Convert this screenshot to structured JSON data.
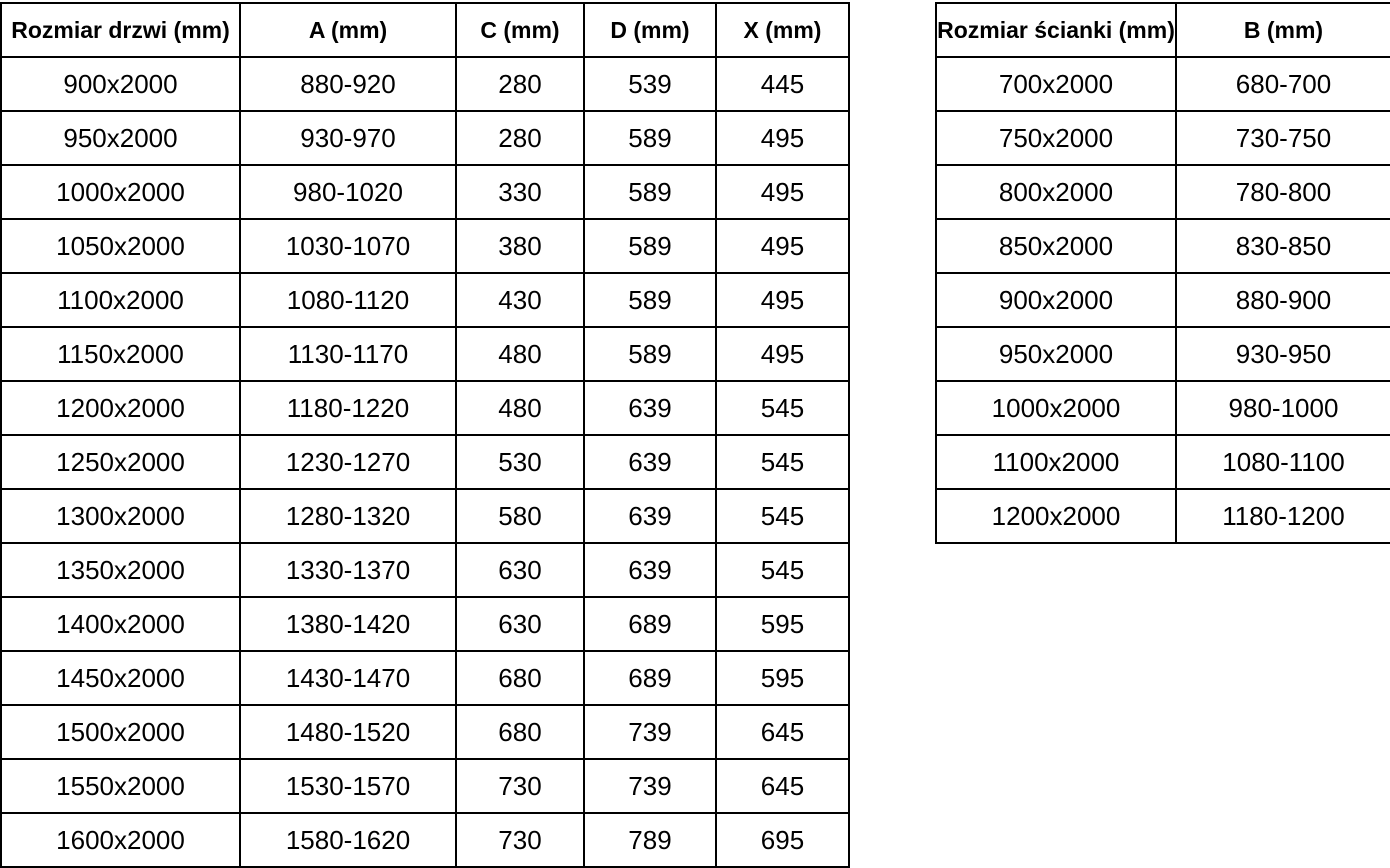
{
  "page": {
    "background_color": "#ffffff",
    "text_color": "#000000",
    "border_color": "#000000"
  },
  "door_table": {
    "columns": [
      "Rozmiar drzwi (mm)",
      "A (mm)",
      "C (mm)",
      "D (mm)",
      "X (mm)"
    ],
    "rows": [
      [
        "900x2000",
        "880-920",
        "280",
        "539",
        "445"
      ],
      [
        "950x2000",
        "930-970",
        "280",
        "589",
        "495"
      ],
      [
        "1000x2000",
        "980-1020",
        "330",
        "589",
        "495"
      ],
      [
        "1050x2000",
        "1030-1070",
        "380",
        "589",
        "495"
      ],
      [
        "1100x2000",
        "1080-1120",
        "430",
        "589",
        "495"
      ],
      [
        "1150x2000",
        "1130-1170",
        "480",
        "589",
        "495"
      ],
      [
        "1200x2000",
        "1180-1220",
        "480",
        "639",
        "545"
      ],
      [
        "1250x2000",
        "1230-1270",
        "530",
        "639",
        "545"
      ],
      [
        "1300x2000",
        "1280-1320",
        "580",
        "639",
        "545"
      ],
      [
        "1350x2000",
        "1330-1370",
        "630",
        "639",
        "545"
      ],
      [
        "1400x2000",
        "1380-1420",
        "630",
        "689",
        "595"
      ],
      [
        "1450x2000",
        "1430-1470",
        "680",
        "689",
        "595"
      ],
      [
        "1500x2000",
        "1480-1520",
        "680",
        "739",
        "645"
      ],
      [
        "1550x2000",
        "1530-1570",
        "730",
        "739",
        "645"
      ],
      [
        "1600x2000",
        "1580-1620",
        "730",
        "789",
        "695"
      ]
    ]
  },
  "wall_table": {
    "columns": [
      "Rozmiar ścianki (mm)",
      "B (mm)"
    ],
    "rows": [
      [
        "700x2000",
        "680-700"
      ],
      [
        "750x2000",
        "730-750"
      ],
      [
        "800x2000",
        "780-800"
      ],
      [
        "850x2000",
        "830-850"
      ],
      [
        "900x2000",
        "880-900"
      ],
      [
        "950x2000",
        "930-950"
      ],
      [
        "1000x2000",
        "980-1000"
      ],
      [
        "1100x2000",
        "1080-1100"
      ],
      [
        "1200x2000",
        "1180-1200"
      ]
    ]
  }
}
